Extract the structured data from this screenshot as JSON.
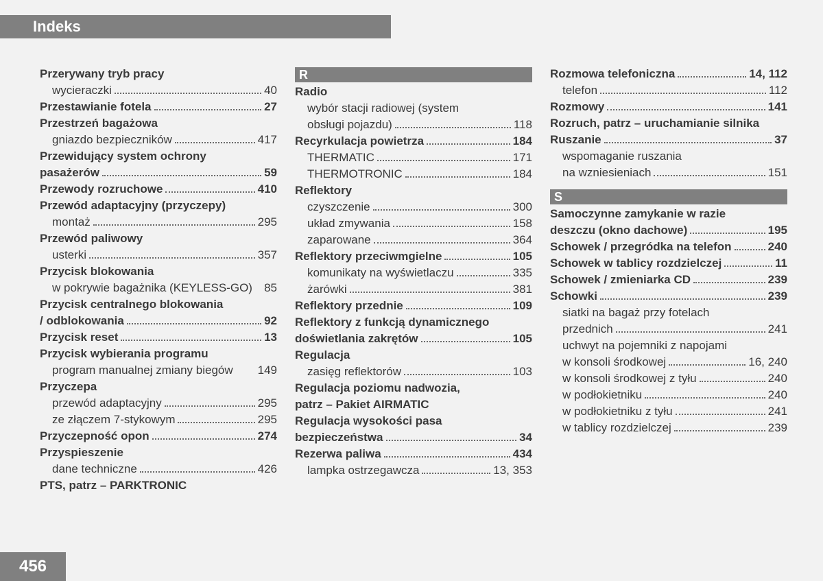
{
  "header": {
    "title": "Indeks"
  },
  "page_number": "456",
  "style": {
    "bg_color": "#f2f2f2",
    "bar_color": "#808080",
    "text_color": "#3a3a3a",
    "title_fontsize": 22,
    "pagenum_fontsize": 24,
    "entry_fontsize": 17,
    "line_height": 24
  },
  "columns": [
    [
      {
        "type": "main",
        "label": "Przerywany tryb pracy"
      },
      {
        "type": "sub",
        "label": "wycieraczki",
        "page": "40"
      },
      {
        "type": "main",
        "label": "Przestawianie fotela",
        "page": "27"
      },
      {
        "type": "main",
        "label": "Przestrzeń bagażowa"
      },
      {
        "type": "sub",
        "label": "gniazdo bezpieczników",
        "page": "417"
      },
      {
        "type": "main",
        "label": "Przewidujący system ochrony"
      },
      {
        "type": "main",
        "label": "pasażerów",
        "page": "59"
      },
      {
        "type": "main",
        "label": "Przewody rozruchowe",
        "page": "410"
      },
      {
        "type": "main",
        "label": "Przewód adaptacyjny (przyczepy)"
      },
      {
        "type": "sub",
        "label": "montaż",
        "page": "295"
      },
      {
        "type": "main",
        "label": "Przewód paliwowy"
      },
      {
        "type": "sub",
        "label": "usterki",
        "page": "357"
      },
      {
        "type": "main",
        "label": "Przycisk blokowania"
      },
      {
        "type": "sub",
        "label": "w pokrywie bagażnika (KEYLESS-GO)",
        "page": "85",
        "nodots": true
      },
      {
        "type": "main",
        "label": "Przycisk centralnego blokowania"
      },
      {
        "type": "main",
        "label": "/ odblokowania",
        "page": "92"
      },
      {
        "type": "main",
        "label": "Przycisk reset",
        "page": "13"
      },
      {
        "type": "main",
        "label": "Przycisk wybierania programu"
      },
      {
        "type": "sub",
        "label": "program manualnej zmiany biegów",
        "page": "149",
        "nodots": true
      },
      {
        "type": "main",
        "label": "Przyczepa"
      },
      {
        "type": "sub",
        "label": "przewód adaptacyjny",
        "page": "295"
      },
      {
        "type": "sub",
        "label": "ze złączem 7-stykowym",
        "page": "295"
      },
      {
        "type": "main",
        "label": "Przyczepność opon",
        "page": "274"
      },
      {
        "type": "main",
        "label": "Przyspieszenie"
      },
      {
        "type": "sub",
        "label": "dane techniczne",
        "page": "426"
      },
      {
        "type": "main",
        "label": "PTS, patrz – PARKTRONIC"
      }
    ],
    [
      {
        "type": "letter",
        "label": "R"
      },
      {
        "type": "main",
        "label": "Radio"
      },
      {
        "type": "sub",
        "label": "wybór stacji radiowej (system",
        "wrap": true
      },
      {
        "type": "sub",
        "label": "obsługi pojazdu)",
        "page": "118"
      },
      {
        "type": "main",
        "label": "Recyrkulacja powietrza",
        "page": "184"
      },
      {
        "type": "sub",
        "label": "THERMATIC",
        "page": "171"
      },
      {
        "type": "sub",
        "label": "THERMOTRONIC",
        "page": "184"
      },
      {
        "type": "main",
        "label": "Reflektory"
      },
      {
        "type": "sub",
        "label": "czyszczenie",
        "page": "300"
      },
      {
        "type": "sub",
        "label": "układ zmywania",
        "page": "158"
      },
      {
        "type": "sub",
        "label": "zaparowane",
        "page": "364"
      },
      {
        "type": "main",
        "label": "Reflektory przeciwmgielne",
        "page": "105"
      },
      {
        "type": "sub",
        "label": "komunikaty na wyświetlaczu",
        "page": "335"
      },
      {
        "type": "sub",
        "label": "żarówki",
        "page": "381"
      },
      {
        "type": "main",
        "label": "Reflektory przednie",
        "page": "109"
      },
      {
        "type": "main",
        "label": "Reflektory z funkcją dynamicznego"
      },
      {
        "type": "main",
        "label": "doświetlania zakrętów",
        "page": "105"
      },
      {
        "type": "main",
        "label": "Regulacja"
      },
      {
        "type": "sub",
        "label": "zasięg reflektorów",
        "page": "103"
      },
      {
        "type": "main",
        "label": "Regulacja poziomu nadwozia,"
      },
      {
        "type": "main",
        "label": "patrz – Pakiet AIRMATIC"
      },
      {
        "type": "main",
        "label": "Regulacja wysokości pasa"
      },
      {
        "type": "main",
        "label": "bezpieczeństwa",
        "page": "34"
      },
      {
        "type": "main",
        "label": "Rezerwa paliwa",
        "page": "434"
      },
      {
        "type": "sub",
        "label": "lampka ostrzegawcza",
        "page": "13, 353"
      }
    ],
    [
      {
        "type": "main",
        "label": "Rozmowa telefoniczna",
        "page": "14, 112"
      },
      {
        "type": "sub",
        "label": "telefon",
        "page": "112"
      },
      {
        "type": "main",
        "label": "Rozmowy",
        "page": "141"
      },
      {
        "type": "main",
        "label": "Rozruch, patrz – uruchamianie silnika"
      },
      {
        "type": "main",
        "label": "Ruszanie",
        "page": "37"
      },
      {
        "type": "sub",
        "label": "wspomaganie ruszania",
        "wrap": true
      },
      {
        "type": "sub",
        "label": "na wzniesieniach",
        "page": "151"
      },
      {
        "type": "gap"
      },
      {
        "type": "letter",
        "label": "S"
      },
      {
        "type": "main",
        "label": "Samoczynne zamykanie w razie"
      },
      {
        "type": "main",
        "label": "deszczu (okno dachowe)",
        "page": "195"
      },
      {
        "type": "main",
        "label": "Schowek / przegródka na telefon",
        "page": "240"
      },
      {
        "type": "main",
        "label": "Schowek w tablicy rozdzielczej",
        "page": "11"
      },
      {
        "type": "main",
        "label": "Schowek / zmieniarka CD",
        "page": "239"
      },
      {
        "type": "main",
        "label": "Schowki",
        "page": "239"
      },
      {
        "type": "sub",
        "label": "siatki na bagaż przy fotelach",
        "wrap": true
      },
      {
        "type": "sub",
        "label": "przednich",
        "page": "241"
      },
      {
        "type": "sub",
        "label": "uchwyt na pojemniki z napojami",
        "wrap": true
      },
      {
        "type": "sub",
        "label": "w konsoli środkowej",
        "page": "16, 240"
      },
      {
        "type": "sub",
        "label": "w konsoli środkowej z tyłu",
        "page": "240"
      },
      {
        "type": "sub",
        "label": "w podłokietniku",
        "page": "240"
      },
      {
        "type": "sub",
        "label": "w podłokietniku z tyłu",
        "page": "241"
      },
      {
        "type": "sub",
        "label": "w tablicy rozdzielczej",
        "page": "239"
      }
    ]
  ]
}
